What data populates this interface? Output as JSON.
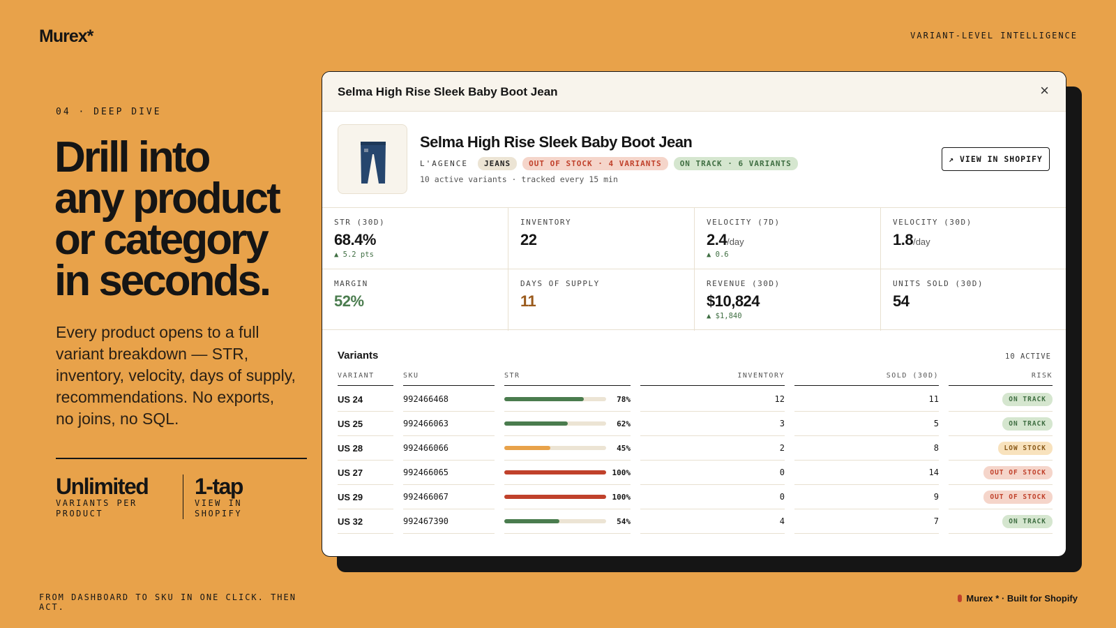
{
  "slide": {
    "logo": "Murex*",
    "eyebrow_right": "VARIANT-LEVEL INTELLIGENCE",
    "section": "04 · DEEP DIVE",
    "headline": [
      "Drill into",
      "any product",
      "or category",
      "in seconds."
    ],
    "body": "Every product opens to a full variant breakdown — STR, inventory, velocity, days of supply, recommendations. No exports, no joins, no SQL.",
    "stats": [
      {
        "value": "Unlimited",
        "label": "VARIANTS PER PRODUCT"
      },
      {
        "value": "1-tap",
        "label": "VIEW IN SHOPIFY"
      }
    ],
    "footer_left": "FROM DASHBOARD TO SKU IN ONE CLICK. THEN ACT.",
    "footer_right": "Murex * · Built for Shopify"
  },
  "modal": {
    "title": "Selma High Rise Sleek Baby Boot Jean",
    "close": "×",
    "product": {
      "name": "Selma High Rise Sleek Baby Boot Jean",
      "brand": "L'AGENCE",
      "tags": [
        {
          "text": "JEANS",
          "bg": "#ece4d4",
          "fg": "#222222"
        },
        {
          "text": "OUT OF STOCK · 4 VARIANTS",
          "bg": "#f5d5ca",
          "fg": "#c0412b"
        },
        {
          "text": "ON TRACK · 6 VARIANTS",
          "bg": "#d5e6cf",
          "fg": "#3f6e42"
        }
      ],
      "subtitle": "10 active variants · tracked every 15 min",
      "button": "↗ VIEW IN SHOPIFY"
    },
    "metrics": [
      {
        "label": "STR (30D)",
        "value": "68.4%",
        "delta": "▲ 5.2 pts"
      },
      {
        "label": "INVENTORY",
        "value": "22"
      },
      {
        "label": "VELOCITY (7D)",
        "value": "2.4",
        "unit": "/day",
        "delta": "▲ 0.6"
      },
      {
        "label": "VELOCITY (30D)",
        "value": "1.8",
        "unit": "/day"
      },
      {
        "label": "MARGIN",
        "value": "52%",
        "color": "#4a7c4e"
      },
      {
        "label": "DAYS OF SUPPLY",
        "value": "11",
        "color": "#9a5a1c"
      },
      {
        "label": "REVENUE (30D)",
        "value": "$10,824",
        "delta": "▲ $1,840"
      },
      {
        "label": "UNITS SOLD (30D)",
        "value": "54"
      }
    ],
    "variants": {
      "title": "Variants",
      "active": "10 ACTIVE",
      "columns": [
        "VARIANT",
        "SKU",
        "STR",
        "INVENTORY",
        "SOLD (30D)",
        "RISK"
      ],
      "rows": [
        {
          "variant": "US 24",
          "sku": "992466468",
          "str": 78,
          "str_label": "78%",
          "str_color": "#4a7c4e",
          "inventory": "12",
          "sold": "11",
          "risk": "ON TRACK",
          "risk_bg": "#d5e6cf",
          "risk_fg": "#3f6e42"
        },
        {
          "variant": "US 25",
          "sku": "992466063",
          "str": 62,
          "str_label": "62%",
          "str_color": "#4a7c4e",
          "inventory": "3",
          "sold": "5",
          "risk": "ON TRACK",
          "risk_bg": "#d5e6cf",
          "risk_fg": "#3f6e42"
        },
        {
          "variant": "US 28",
          "sku": "992466066",
          "str": 45,
          "str_label": "45%",
          "str_color": "#e8a24a",
          "inventory": "2",
          "sold": "8",
          "risk": "LOW STOCK",
          "risk_bg": "#f8e2bd",
          "risk_fg": "#8a5a1a"
        },
        {
          "variant": "US 27",
          "sku": "992466065",
          "str": 100,
          "str_label": "100%",
          "str_color": "#c0412b",
          "inventory": "0",
          "sold": "14",
          "risk": "OUT OF STOCK",
          "risk_bg": "#f5d5ca",
          "risk_fg": "#c0412b"
        },
        {
          "variant": "US 29",
          "sku": "992466067",
          "str": 100,
          "str_label": "100%",
          "str_color": "#c0412b",
          "inventory": "0",
          "sold": "9",
          "risk": "OUT OF STOCK",
          "risk_bg": "#f5d5ca",
          "risk_fg": "#c0412b"
        },
        {
          "variant": "US 32",
          "sku": "992467390",
          "str": 54,
          "str_label": "54%",
          "str_color": "#4a7c4e",
          "inventory": "4",
          "sold": "7",
          "risk": "ON TRACK",
          "risk_bg": "#d5e6cf",
          "risk_fg": "#3f6e42"
        }
      ]
    }
  }
}
